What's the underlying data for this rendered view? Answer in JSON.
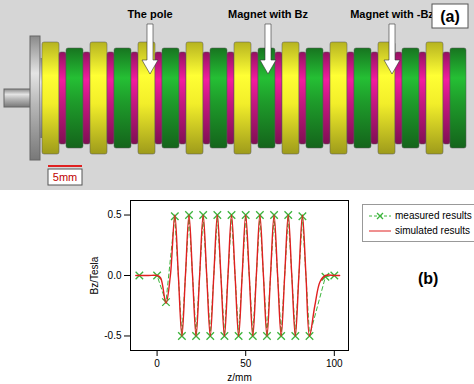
{
  "diagram": {
    "panel_label": "(a)",
    "labels": [
      "The pole",
      "Magnet with Bz",
      "Magnet with -Bz"
    ],
    "scale_bar": "5mm"
  },
  "chart_data": {
    "type": "line",
    "annotations": [
      "(b)"
    ],
    "x_label": "z/mm",
    "y_label": "Bz/Tesla",
    "xlim": [
      -15,
      108
    ],
    "xticks": [
      0,
      50,
      100
    ],
    "ylim": [
      -0.62,
      0.62
    ],
    "yticks": [
      -0.5,
      {
        "value": 0,
        "label": "0.0"
      },
      0.5
    ],
    "legend": "right",
    "series": [
      {
        "name": "measured results",
        "color": "#3cb43c",
        "marker": "x",
        "line_style": "dashed",
        "x": [
          -10,
          0,
          5,
          10,
          14,
          18,
          22,
          26,
          30,
          34,
          38,
          42,
          46,
          50,
          54,
          58,
          62,
          66,
          70,
          74,
          78,
          82,
          86,
          95,
          100
        ],
        "values": [
          0,
          0,
          -0.22,
          0.49,
          -0.5,
          0.5,
          -0.5,
          0.5,
          -0.5,
          0.5,
          -0.5,
          0.5,
          -0.5,
          0.5,
          -0.5,
          0.5,
          -0.5,
          0.5,
          -0.5,
          0.5,
          -0.5,
          0.49,
          -0.5,
          -0.01,
          0
        ]
      },
      {
        "name": "simulated results",
        "color": "#e02020",
        "line_style": "solid",
        "x": [
          -12,
          -5,
          0,
          2,
          5,
          7.5,
          10,
          12,
          14,
          16,
          18,
          20,
          22,
          24,
          26,
          28,
          30,
          32,
          34,
          36,
          38,
          40,
          42,
          44,
          46,
          48,
          50,
          52,
          54,
          56,
          58,
          60,
          62,
          64,
          66,
          68,
          70,
          72,
          74,
          76,
          78,
          80,
          82,
          84,
          86,
          89,
          92,
          95,
          100,
          103
        ],
        "values": [
          0,
          0,
          0,
          -0.02,
          -0.23,
          0,
          0.5,
          0,
          -0.5,
          0,
          0.5,
          0,
          -0.5,
          0,
          0.5,
          0,
          -0.5,
          0,
          0.5,
          0,
          -0.5,
          0,
          0.5,
          0,
          -0.5,
          0,
          0.5,
          0,
          -0.5,
          0,
          0.5,
          0,
          -0.5,
          0,
          0.5,
          0,
          -0.5,
          0,
          0.5,
          0,
          -0.5,
          0,
          0.5,
          0,
          -0.5,
          -0.25,
          -0.05,
          0,
          0,
          0
        ]
      }
    ]
  }
}
